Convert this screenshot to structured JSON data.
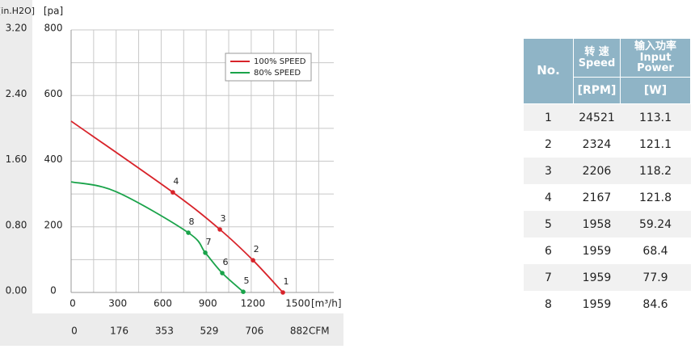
{
  "chart_data": {
    "type": "line",
    "y_label": "[pa]",
    "y2_label": "[in.H2O]",
    "x_label": "[m³/h]",
    "x2_label": "CFM",
    "xlim": [
      0,
      1750
    ],
    "xticks": [
      0,
      300,
      600,
      900,
      1200,
      1500
    ],
    "x2lim": [
      0,
      1030
    ],
    "x2ticks": [
      0,
      176,
      353,
      529,
      706,
      882
    ],
    "ylim": [
      0,
      800
    ],
    "yticks": [
      0,
      200,
      400,
      600,
      800
    ],
    "y2lim": [
      0,
      3.2
    ],
    "y2ticks": [
      {
        "value": 0,
        "label": "0.00"
      },
      {
        "value": 0.8,
        "label": "0.80"
      },
      {
        "value": 1.6,
        "label": "1.60"
      },
      {
        "value": 2.4,
        "label": "2.40"
      },
      {
        "value": 3.2,
        "label": "3.20"
      }
    ],
    "grid": true,
    "legend": "upper right",
    "series": [
      {
        "name": "100% SPEED",
        "color": "#d8232a",
        "x": [
          0,
          678,
          991,
          1212,
          1411
        ],
        "values": [
          522,
          305,
          192,
          98,
          0
        ],
        "point_labels": [
          null,
          "4",
          "3",
          "2",
          "1"
        ]
      },
      {
        "name": "80% SPEED",
        "color": "#1aa34a",
        "x": [
          0,
          300,
          781,
          894,
          1007,
          1147
        ],
        "values": [
          337,
          307,
          182,
          121,
          59,
          2
        ],
        "point_labels": [
          null,
          null,
          "8",
          "7",
          "6",
          "5"
        ]
      }
    ]
  },
  "table": {
    "header": {
      "no": "No.",
      "speed_cn": "转 速",
      "speed_en": "Speed",
      "power_cn": "输入功率",
      "power_en": "Input Power",
      "speed_unit": "[RPM]",
      "power_unit": "[W]"
    },
    "rows": [
      [
        "1",
        "24521",
        "113.1"
      ],
      [
        "2",
        "2324",
        "121.1"
      ],
      [
        "3",
        "2206",
        "118.2"
      ],
      [
        "4",
        "2167",
        "121.8"
      ],
      [
        "5",
        "1958",
        "59.24"
      ],
      [
        "6",
        "1959",
        "68.4"
      ],
      [
        "7",
        "1959",
        "77.9"
      ],
      [
        "8",
        "1959",
        "84.6"
      ]
    ]
  }
}
